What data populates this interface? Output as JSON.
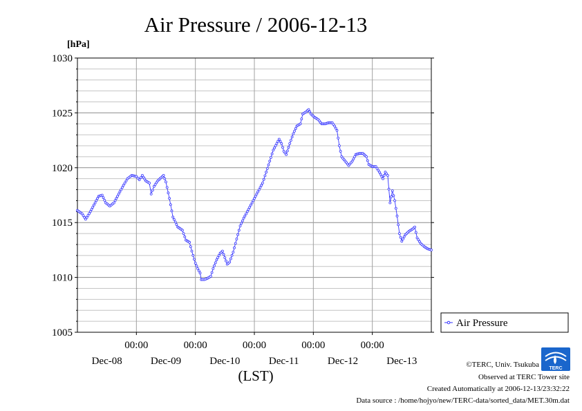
{
  "chart_data": {
    "type": "line",
    "title": "Air Pressure / 2006-12-13",
    "ylabel": "[hPa]",
    "xlabel": "(LST)",
    "ylim": [
      1005,
      1030
    ],
    "yticks": [
      1005,
      1010,
      1015,
      1020,
      1025,
      1030
    ],
    "x_range_days": [
      0,
      6
    ],
    "x_time_ticks": [
      "00:00",
      "00:00",
      "00:00",
      "00:00",
      "00:00"
    ],
    "x_date_labels": [
      "Dec-08",
      "Dec-09",
      "Dec-10",
      "Dec-11",
      "Dec-12",
      "Dec-13"
    ],
    "grid": true,
    "legend_position": "right",
    "series": [
      {
        "name": "Air Pressure",
        "color": "#3333ff",
        "marker": "open-circle",
        "points": [
          [
            0.0,
            1016.1
          ],
          [
            0.08,
            1015.8
          ],
          [
            0.14,
            1015.3
          ],
          [
            0.22,
            1016.0
          ],
          [
            0.3,
            1016.8
          ],
          [
            0.36,
            1017.4
          ],
          [
            0.42,
            1017.5
          ],
          [
            0.48,
            1016.8
          ],
          [
            0.55,
            1016.5
          ],
          [
            0.62,
            1016.8
          ],
          [
            0.7,
            1017.6
          ],
          [
            0.78,
            1018.4
          ],
          [
            0.85,
            1019.0
          ],
          [
            0.92,
            1019.3
          ],
          [
            1.0,
            1019.2
          ],
          [
            1.05,
            1018.9
          ],
          [
            1.1,
            1019.3
          ],
          [
            1.16,
            1018.8
          ],
          [
            1.22,
            1018.6
          ],
          [
            1.25,
            1017.6
          ],
          [
            1.3,
            1018.3
          ],
          [
            1.36,
            1018.8
          ],
          [
            1.42,
            1019.1
          ],
          [
            1.46,
            1019.3
          ],
          [
            1.5,
            1018.7
          ],
          [
            1.56,
            1017.2
          ],
          [
            1.62,
            1015.5
          ],
          [
            1.7,
            1014.6
          ],
          [
            1.78,
            1014.3
          ],
          [
            1.84,
            1013.4
          ],
          [
            1.9,
            1013.2
          ],
          [
            1.96,
            1012.0
          ],
          [
            2.0,
            1011.3
          ],
          [
            2.04,
            1010.8
          ],
          [
            2.08,
            1010.4
          ],
          [
            2.1,
            1009.8
          ],
          [
            2.15,
            1009.8
          ],
          [
            2.2,
            1009.9
          ],
          [
            2.26,
            1010.1
          ],
          [
            2.3,
            1010.8
          ],
          [
            2.36,
            1011.6
          ],
          [
            2.42,
            1012.2
          ],
          [
            2.46,
            1012.4
          ],
          [
            2.5,
            1011.8
          ],
          [
            2.54,
            1011.2
          ],
          [
            2.58,
            1011.4
          ],
          [
            2.64,
            1012.3
          ],
          [
            2.7,
            1013.5
          ],
          [
            2.76,
            1014.7
          ],
          [
            2.82,
            1015.4
          ],
          [
            2.9,
            1016.2
          ],
          [
            2.98,
            1017.0
          ],
          [
            3.06,
            1017.8
          ],
          [
            3.14,
            1018.6
          ],
          [
            3.2,
            1019.6
          ],
          [
            3.26,
            1020.6
          ],
          [
            3.32,
            1021.6
          ],
          [
            3.38,
            1022.2
          ],
          [
            3.42,
            1022.6
          ],
          [
            3.46,
            1022.2
          ],
          [
            3.5,
            1021.5
          ],
          [
            3.54,
            1021.2
          ],
          [
            3.6,
            1022.2
          ],
          [
            3.66,
            1023.1
          ],
          [
            3.72,
            1023.8
          ],
          [
            3.78,
            1024.0
          ],
          [
            3.82,
            1024.9
          ],
          [
            3.88,
            1025.1
          ],
          [
            3.92,
            1025.3
          ],
          [
            3.96,
            1024.9
          ],
          [
            4.02,
            1024.6
          ],
          [
            4.08,
            1024.4
          ],
          [
            4.14,
            1024.0
          ],
          [
            4.2,
            1024.0
          ],
          [
            4.26,
            1024.1
          ],
          [
            4.32,
            1024.1
          ],
          [
            4.36,
            1023.8
          ],
          [
            4.4,
            1023.4
          ],
          [
            4.44,
            1022.0
          ],
          [
            4.48,
            1021.0
          ],
          [
            4.54,
            1020.6
          ],
          [
            4.6,
            1020.2
          ],
          [
            4.66,
            1020.6
          ],
          [
            4.72,
            1021.2
          ],
          [
            4.78,
            1021.3
          ],
          [
            4.84,
            1021.3
          ],
          [
            4.9,
            1021.0
          ],
          [
            4.94,
            1020.3
          ],
          [
            5.0,
            1020.1
          ],
          [
            5.06,
            1020.1
          ],
          [
            5.12,
            1019.6
          ],
          [
            5.18,
            1019.0
          ],
          [
            5.22,
            1019.6
          ],
          [
            5.26,
            1019.3
          ],
          [
            5.3,
            1016.8
          ],
          [
            5.34,
            1017.9
          ],
          [
            5.38,
            1017.0
          ],
          [
            5.42,
            1015.6
          ],
          [
            5.46,
            1014.0
          ],
          [
            5.5,
            1013.3
          ],
          [
            5.56,
            1013.9
          ],
          [
            5.62,
            1014.2
          ],
          [
            5.68,
            1014.4
          ],
          [
            5.72,
            1014.6
          ],
          [
            5.76,
            1013.6
          ],
          [
            5.82,
            1013.1
          ],
          [
            5.88,
            1012.8
          ],
          [
            5.94,
            1012.6
          ],
          [
            6.0,
            1012.5
          ]
        ]
      }
    ]
  },
  "footer": {
    "copyright": "©TERC, Univ. Tsukuba",
    "observed": "Observed at TERC Tower site",
    "created": "Created Automatically at 2006-12-13/23:32:22",
    "source": "Data source : /home/hojyo/new/TERC-data/sorted_data/MET.30m.dat"
  },
  "logo": {
    "text": "TERC"
  }
}
